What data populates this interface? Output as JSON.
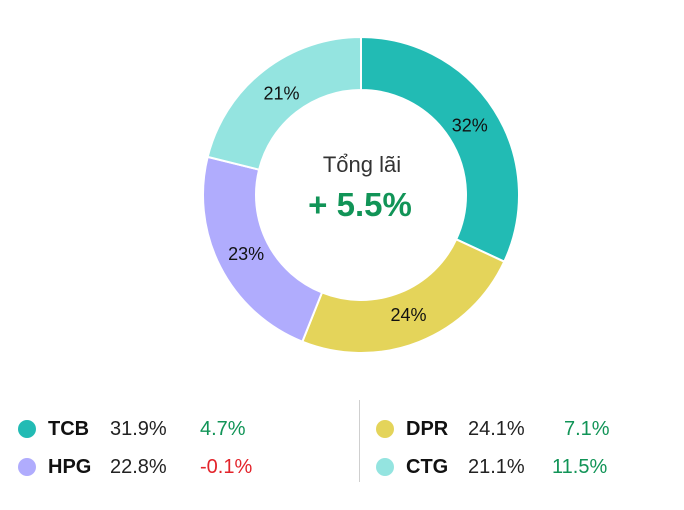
{
  "chart_data": {
    "type": "pie",
    "variant": "donut",
    "start_angle_deg": 0,
    "direction": "clockwise",
    "slices": [
      {
        "label": "TCB",
        "value": 31.9,
        "slice_label": "32%",
        "color": "#22bbb4"
      },
      {
        "label": "DPR",
        "value": 24.1,
        "slice_label": "24%",
        "color": "#e4d45a"
      },
      {
        "label": "HPG",
        "value": 22.8,
        "slice_label": "23%",
        "color": "#b0acfd"
      },
      {
        "label": "CTG",
        "value": 21.1,
        "slice_label": "21%",
        "color": "#94e4e0"
      }
    ],
    "center": {
      "title": "Tổng lãi",
      "value": "+ 5.5%",
      "value_color": "#119457"
    }
  },
  "legend": {
    "left": [
      {
        "symbol": "TCB",
        "share": "31.9%",
        "change": "4.7%",
        "change_color": "#119457",
        "dot_color": "#22bbb4"
      },
      {
        "symbol": "HPG",
        "share": "22.8%",
        "change": "-0.1%",
        "change_color": "#e3242b",
        "dot_color": "#b0acfd"
      }
    ],
    "right": [
      {
        "symbol": "DPR",
        "share": "24.1%",
        "change": "7.1%",
        "change_color": "#119457",
        "dot_color": "#e4d45a"
      },
      {
        "symbol": "CTG",
        "share": "21.1%",
        "change": "11.5%",
        "change_color": "#119457",
        "dot_color": "#94e4e0"
      }
    ]
  }
}
